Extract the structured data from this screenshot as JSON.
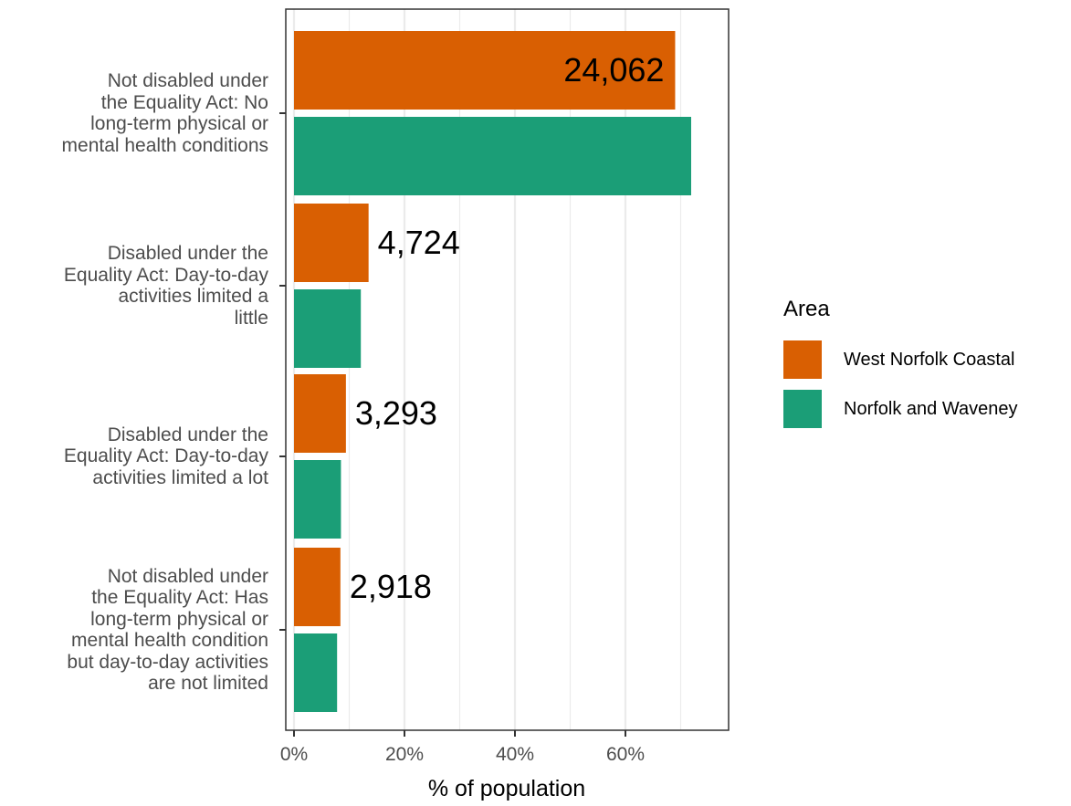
{
  "chart_data": {
    "type": "bar",
    "orientation": "horizontal",
    "categories": [
      "Not disabled under the Equality Act: No long-term physical or mental health conditions",
      "Disabled under the Equality Act: Day-to-day activities limited a little",
      "Disabled under the Equality Act: Day-to-day activities limited a lot",
      "Not disabled under the Equality Act: Has long-term physical or mental health condition but day-to-day activities are not limited"
    ],
    "category_lines": [
      [
        "Not disabled under",
        "the Equality Act: No",
        "long-term physical or",
        "mental health conditions"
      ],
      [
        "Disabled under the",
        "Equality Act: Day-to-day",
        "activities limited a",
        "little"
      ],
      [
        "Disabled under the",
        "Equality Act: Day-to-day",
        "activities limited a lot"
      ],
      [
        "Not disabled under",
        "the Equality Act: Has",
        "long-term physical or",
        "mental health condition",
        "but day-to-day activities",
        "are not limited"
      ]
    ],
    "series": [
      {
        "name": "West Norfolk Coastal",
        "color": "#D95F02",
        "values": [
          69.0,
          13.5,
          9.4,
          8.4
        ],
        "data_labels": [
          "24,062",
          "4,724",
          "3,293",
          "2,918"
        ]
      },
      {
        "name": "Norfolk and Waveney",
        "color": "#1B9E77",
        "values": [
          71.9,
          12.1,
          8.5,
          7.8
        ]
      }
    ],
    "xlabel": "% of population",
    "x_ticks": [
      "0%",
      "20%",
      "40%",
      "60%"
    ],
    "xlim": [
      0,
      79
    ],
    "grid": true,
    "legend_title": "Area",
    "legend_position": "right"
  }
}
